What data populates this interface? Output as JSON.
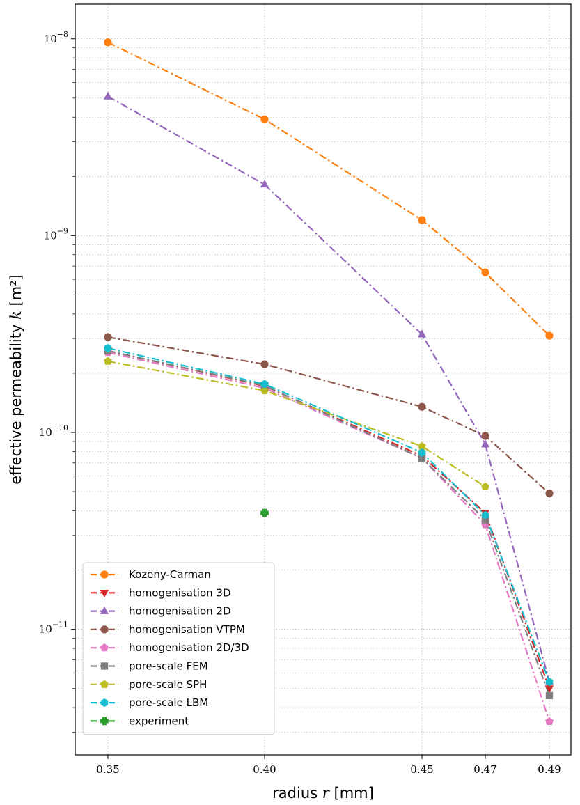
{
  "chart_data": {
    "type": "line",
    "title": "",
    "xlabel": "radius",
    "xlabel_var": "r",
    "xlabel_unit": "[mm]",
    "ylabel": "effective permeability",
    "ylabel_var": "k",
    "ylabel_unit": "[m²]",
    "y_scale": "log",
    "xlim": [
      0.3375,
      0.4955
    ],
    "ylim": [
      2.3e-12,
      1.5e-08
    ],
    "x_ticks": [
      0.35,
      0.4,
      0.45,
      0.47,
      0.49
    ],
    "x_tick_labels": [
      "0.35",
      "0.40",
      "0.45",
      "0.47",
      "0.49"
    ],
    "y_ticks": [
      {
        "value": 1e-08,
        "mantissa": "10",
        "exp": "−8"
      },
      {
        "value": 1e-09,
        "mantissa": "10",
        "exp": "−9"
      },
      {
        "value": 1e-10,
        "mantissa": "10",
        "exp": "−10"
      },
      {
        "value": 1e-11,
        "mantissa": "10",
        "exp": "−11"
      }
    ],
    "grid": true,
    "legend_position": "bottom-left",
    "series": [
      {
        "name": "Kozeny-Carman",
        "color": "#ff7f0e",
        "marker": "circle",
        "dash": "dashdot",
        "x": [
          0.35,
          0.4,
          0.45,
          0.47,
          0.49
        ],
        "y": [
          9.6e-09,
          3.9e-09,
          1.2e-09,
          6.5e-10,
          3.1e-10
        ]
      },
      {
        "name": "homogenisation 3D",
        "color": "#d62728",
        "marker": "triangle-down",
        "dash": "dashdot",
        "x": [
          0.35,
          0.4,
          0.45,
          0.47,
          0.49
        ],
        "y": [
          2.6e-10,
          1.72e-10,
          7.6e-11,
          3.9e-11,
          5e-12
        ]
      },
      {
        "name": "homogenisation 2D",
        "color": "#9467bd",
        "marker": "triangle-up",
        "dash": "dashdot",
        "x": [
          0.35,
          0.4,
          0.45,
          0.47,
          0.49
        ],
        "y": [
          5.1e-09,
          1.82e-09,
          3.15e-10,
          8.7e-11,
          5.4e-12
        ]
      },
      {
        "name": "homogenisation VTPM",
        "color": "#8c564b",
        "marker": "circle",
        "dash": "dashdot",
        "x": [
          0.35,
          0.4,
          0.45,
          0.47,
          0.49
        ],
        "y": [
          3.05e-10,
          2.22e-10,
          1.35e-10,
          9.6e-11,
          4.9e-11
        ]
      },
      {
        "name": "homogenisation 2D/3D",
        "color": "#e377c2",
        "marker": "pentagon",
        "dash": "dashdot",
        "x": [
          0.35,
          0.4,
          0.45,
          0.47,
          0.49
        ],
        "y": [
          2.55e-10,
          1.68e-10,
          7.4e-11,
          3.4e-11,
          3.4e-12
        ]
      },
      {
        "name": "pore-scale FEM",
        "color": "#7f7f7f",
        "marker": "square",
        "dash": "dashdot",
        "x": [
          0.35,
          0.4,
          0.45,
          0.47,
          0.49
        ],
        "y": [
          2.6e-10,
          1.73e-10,
          7.4e-11,
          3.6e-11,
          4.6e-12
        ]
      },
      {
        "name": "pore-scale SPH",
        "color": "#bcbd22",
        "marker": "pentagon",
        "dash": "dashdot",
        "x": [
          0.35,
          0.4,
          0.45,
          0.47
        ],
        "y": [
          2.3e-10,
          1.63e-10,
          8.5e-11,
          5.3e-11
        ]
      },
      {
        "name": "pore-scale LBM",
        "color": "#17becf",
        "marker": "hexagon",
        "dash": "dashdot",
        "x": [
          0.35,
          0.4,
          0.45,
          0.47,
          0.49
        ],
        "y": [
          2.68e-10,
          1.76e-10,
          7.9e-11,
          3.8e-11,
          5.4e-12
        ]
      },
      {
        "name": "experiment",
        "color": "#2ca02c",
        "marker": "plus",
        "dash": "dashdot",
        "x": [
          0.4
        ],
        "y": [
          3.9e-11
        ]
      }
    ]
  }
}
